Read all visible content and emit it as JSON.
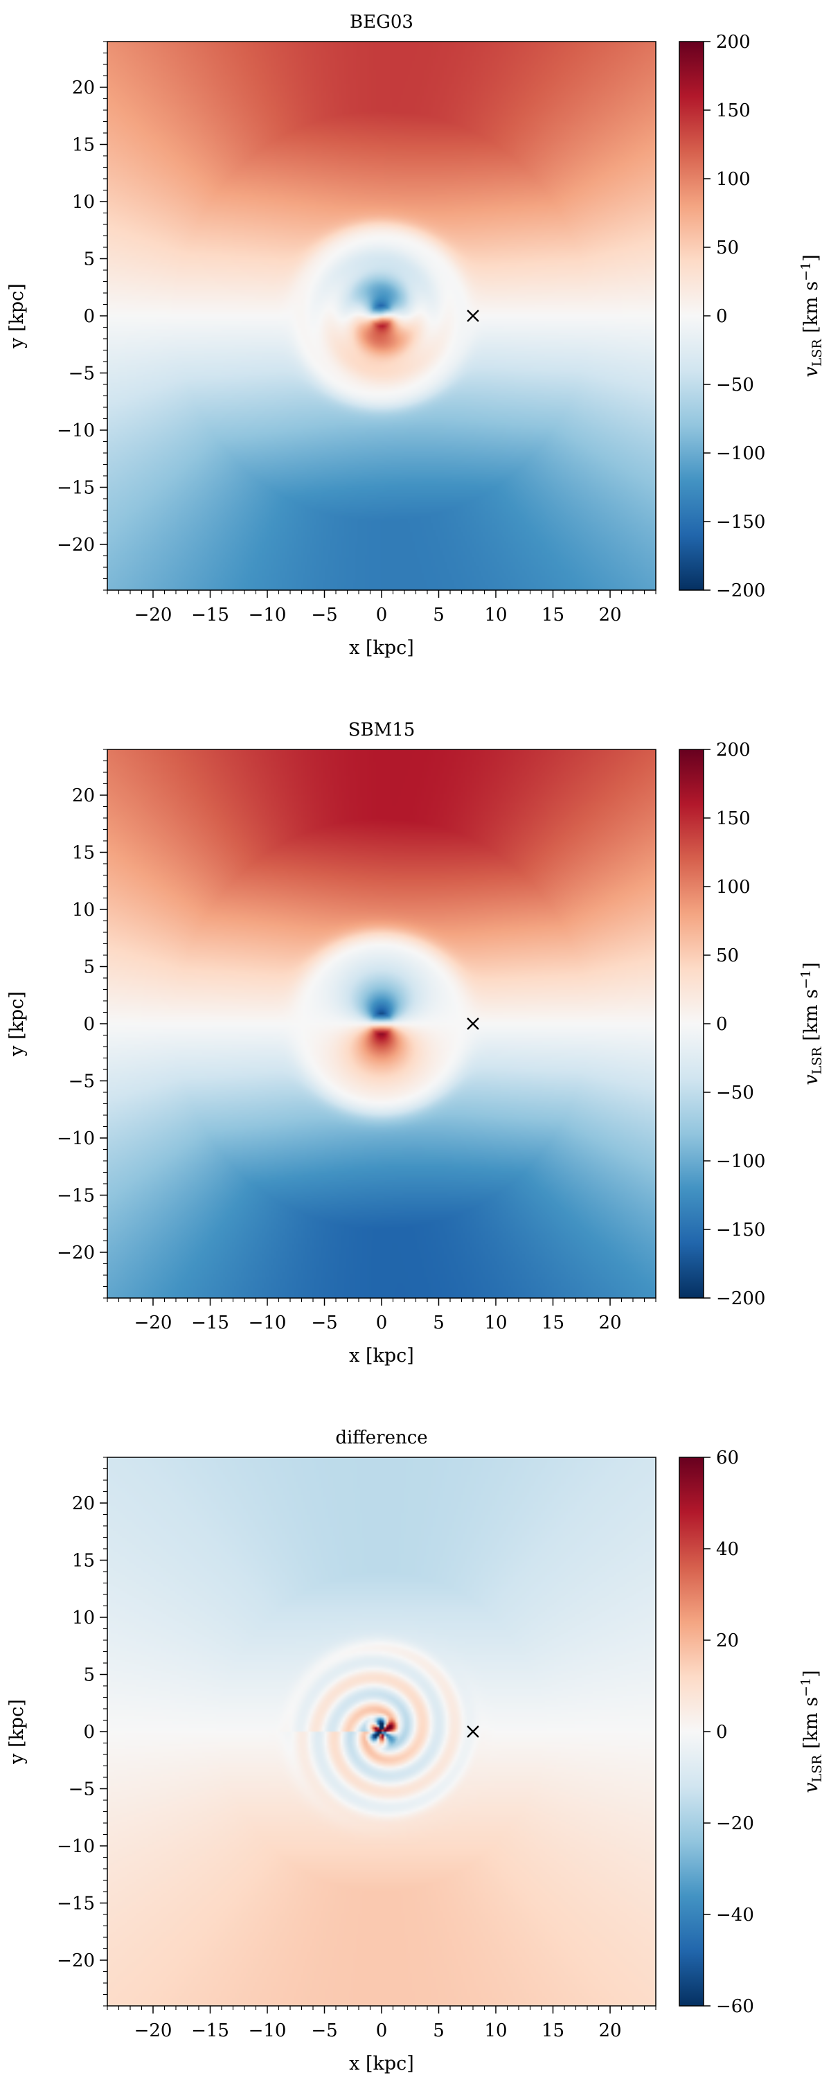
{
  "chart_data": [
    {
      "type": "heatmap",
      "title": "BEG03",
      "xlabel": "x [kpc]",
      "ylabel": "y [kpc]",
      "xlim": [
        -24,
        24
      ],
      "ylim": [
        -24,
        24
      ],
      "xticks": [
        -20,
        -15,
        -10,
        -5,
        0,
        5,
        10,
        15,
        20
      ],
      "yticks": [
        -20,
        -15,
        -10,
        -5,
        0,
        5,
        10,
        15,
        20
      ],
      "colorbar": {
        "label": "v_LSR [km s^-1]",
        "label_main": "v",
        "label_sub": "LSR",
        "label_unit": "[km s",
        "label_exp": "−1",
        "label_close": "]",
        "min": -200,
        "max": 200,
        "ticks": [
          -200,
          -150,
          -100,
          -50,
          0,
          50,
          100,
          150,
          200
        ],
        "colormap": "RdBu_r"
      },
      "marker": {
        "symbol": "×",
        "x": 8,
        "y": 0
      },
      "field": {
        "outer_amplitude": 140,
        "inner_radius": 8,
        "inner_amplitude": 220,
        "ripple": 0.35
      }
    },
    {
      "type": "heatmap",
      "title": "SBM15",
      "xlabel": "x [kpc]",
      "ylabel": "y [kpc]",
      "xlim": [
        -24,
        24
      ],
      "ylim": [
        -24,
        24
      ],
      "xticks": [
        -20,
        -15,
        -10,
        -5,
        0,
        5,
        10,
        15,
        20
      ],
      "yticks": [
        -20,
        -15,
        -10,
        -5,
        0,
        5,
        10,
        15,
        20
      ],
      "colorbar": {
        "label": "v_LSR [km s^-1]",
        "label_main": "v",
        "label_sub": "LSR",
        "label_unit": "[km s",
        "label_exp": "−1",
        "label_close": "]",
        "min": -200,
        "max": 200,
        "ticks": [
          -200,
          -150,
          -100,
          -50,
          0,
          50,
          100,
          150,
          200
        ],
        "colormap": "RdBu_r"
      },
      "marker": {
        "symbol": "×",
        "x": 8,
        "y": 0
      },
      "field": {
        "outer_amplitude": 160,
        "inner_radius": 8,
        "inner_amplitude": 240,
        "ripple": 0.0
      }
    },
    {
      "type": "heatmap",
      "title": "difference",
      "xlabel": "x [kpc]",
      "ylabel": "y [kpc]",
      "xlim": [
        -24,
        24
      ],
      "ylim": [
        -24,
        24
      ],
      "xticks": [
        -20,
        -15,
        -10,
        -5,
        0,
        5,
        10,
        15,
        20
      ],
      "yticks": [
        -20,
        -15,
        -10,
        -5,
        0,
        5,
        10,
        15,
        20
      ],
      "colorbar": {
        "label": "v_LSR [km s^-1]",
        "label_main": "v",
        "label_sub": "LSR",
        "label_unit": "[km s",
        "label_exp": "−1",
        "label_close": "]",
        "min": -60,
        "max": 60,
        "ticks": [
          -60,
          -40,
          -20,
          0,
          20,
          40,
          60
        ],
        "colormap": "RdBu_r"
      },
      "marker": {
        "symbol": "×",
        "x": 8,
        "y": 0
      },
      "field": {
        "outer_amplitude": -16,
        "inner_radius": 8,
        "inner_amplitude": 30,
        "ripple": 1.0
      }
    }
  ]
}
